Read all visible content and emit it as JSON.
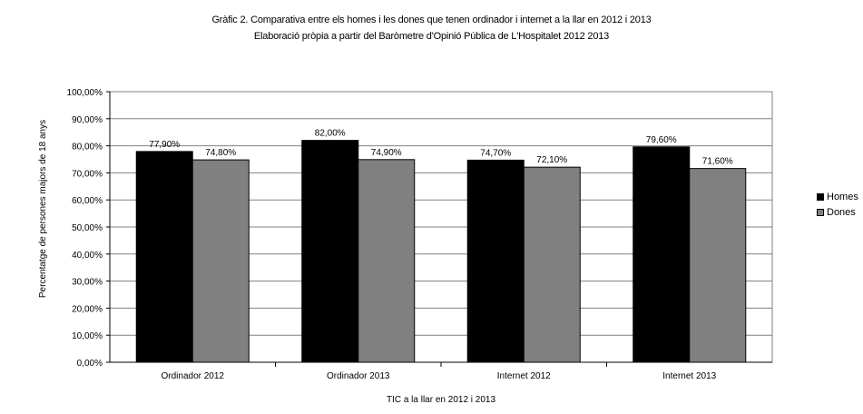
{
  "chart_data": {
    "type": "bar",
    "title": "Gràfic 2. Comparativa entre els homes i les dones que tenen ordinador i internet a la llar en 2012 i 2013",
    "subtitle": "Elaboració pròpia a partir del Baròmetre d'Opinió Pública de L'Hospitalet 2012 2013",
    "xlabel": "TIC a la llar en 2012 i 2013",
    "ylabel": "Percentatge de persones majors de 18 anys",
    "categories": [
      "Ordinador 2012",
      "Ordinador 2013",
      "Internet 2012",
      "Internet 2013"
    ],
    "series": [
      {
        "name": "Homes",
        "values": [
          77.9,
          82.0,
          74.7,
          79.6
        ],
        "labels": [
          "77,90%",
          "82,00%",
          "74,70%",
          "79,60%"
        ],
        "color": "#000000"
      },
      {
        "name": "Dones",
        "values": [
          74.8,
          74.9,
          72.1,
          71.6
        ],
        "labels": [
          "74,80%",
          "74,90%",
          "72,10%",
          "71,60%"
        ],
        "color": "#808080"
      }
    ],
    "ylim": [
      0,
      100
    ],
    "yticks": [
      "0,00%",
      "10,00%",
      "20,00%",
      "30,00%",
      "40,00%",
      "50,00%",
      "60,00%",
      "70,00%",
      "80,00%",
      "90,00%",
      "100,00%"
    ],
    "grid": true,
    "legend_position": "right"
  }
}
